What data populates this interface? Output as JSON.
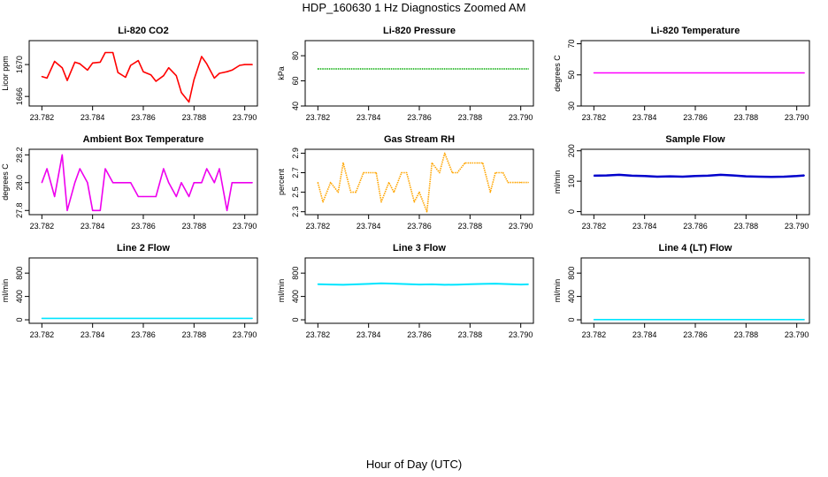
{
  "figure": {
    "title": "HDP_160630  1 Hz Diagnostics Zoomed AM",
    "xlabel": "Hour of Day (UTC)"
  },
  "chart_data": [
    {
      "type": "line",
      "title": "Li-820 CO2",
      "ylabel": "Licor ppm",
      "color": "#ff0000",
      "xlim": [
        23.7815,
        23.7905
      ],
      "ylim": [
        1664.8,
        1673.0
      ],
      "xticks": [
        "23.782",
        "23.784",
        "23.786",
        "23.788",
        "23.790"
      ],
      "yticks": [
        {
          "value": 1666,
          "label": "1666"
        },
        {
          "value": 1670,
          "label": "1670"
        }
      ],
      "x": [
        23.782,
        23.7822,
        23.7825,
        23.7828,
        23.783,
        23.7833,
        23.7835,
        23.7838,
        23.784,
        23.7843,
        23.7845,
        23.7848,
        23.785,
        23.7853,
        23.7855,
        23.7858,
        23.786,
        23.7863,
        23.7865,
        23.7868,
        23.787,
        23.7873,
        23.7875,
        23.7878,
        23.788,
        23.7883,
        23.7885,
        23.7888,
        23.789,
        23.7893,
        23.7895,
        23.7898,
        23.79,
        23.7903
      ],
      "values": [
        1668.5,
        1668.3,
        1670.4,
        1669.6,
        1668.0,
        1670.3,
        1670.1,
        1669.3,
        1670.2,
        1670.3,
        1671.5,
        1671.5,
        1669.0,
        1668.4,
        1669.9,
        1670.5,
        1669.1,
        1668.7,
        1667.9,
        1668.6,
        1669.6,
        1668.6,
        1666.5,
        1665.3,
        1668.1,
        1671.0,
        1670.1,
        1668.3,
        1668.9,
        1669.1,
        1669.3,
        1669.9,
        1670.0,
        1670.0
      ]
    },
    {
      "type": "line",
      "title": "Li-820 Pressure",
      "ylabel": "kPa",
      "color": "#00aa00",
      "line_style": "dotted",
      "xlim": [
        23.7815,
        23.7905
      ],
      "ylim": [
        40,
        92
      ],
      "xticks": [
        "23.782",
        "23.784",
        "23.786",
        "23.788",
        "23.790"
      ],
      "yticks": [
        {
          "value": 40,
          "label": "40"
        },
        {
          "value": 60,
          "label": "60"
        },
        {
          "value": 80,
          "label": "80"
        }
      ],
      "x": [
        23.782,
        23.7903
      ],
      "values": [
        69.5,
        69.5
      ]
    },
    {
      "type": "line",
      "title": "Li-820 Temperature",
      "ylabel": "degrees C",
      "color": "#ff00ff",
      "xlim": [
        23.7815,
        23.7905
      ],
      "ylim": [
        30,
        72
      ],
      "xticks": [
        "23.782",
        "23.784",
        "23.786",
        "23.788",
        "23.790"
      ],
      "yticks": [
        {
          "value": 30,
          "label": "30"
        },
        {
          "value": 50,
          "label": "50"
        },
        {
          "value": 70,
          "label": "70"
        }
      ],
      "x": [
        23.782,
        23.7903
      ],
      "values": [
        51.3,
        51.3
      ]
    },
    {
      "type": "line",
      "title": "Ambient Box Temperature",
      "ylabel": "degrees C",
      "color": "#ee00ee",
      "xlim": [
        23.7815,
        23.7905
      ],
      "ylim": [
        27.77,
        28.24
      ],
      "xticks": [
        "23.782",
        "23.784",
        "23.786",
        "23.788",
        "23.790"
      ],
      "yticks": [
        {
          "value": 27.8,
          "label": "27.8"
        },
        {
          "value": 28.0,
          "label": "28.0"
        },
        {
          "value": 28.2,
          "label": "28.2"
        }
      ],
      "x": [
        23.782,
        23.7822,
        23.7825,
        23.7828,
        23.783,
        23.7833,
        23.7835,
        23.7838,
        23.784,
        23.7843,
        23.7845,
        23.7848,
        23.785,
        23.7853,
        23.7855,
        23.7858,
        23.786,
        23.7863,
        23.7865,
        23.7868,
        23.787,
        23.7873,
        23.7875,
        23.7878,
        23.788,
        23.7883,
        23.7885,
        23.7888,
        23.789,
        23.7893,
        23.7895,
        23.7898,
        23.79,
        23.7903
      ],
      "values": [
        28.0,
        28.1,
        27.9,
        28.2,
        27.8,
        28.0,
        28.1,
        28.0,
        27.8,
        27.8,
        28.1,
        28.0,
        28.0,
        28.0,
        28.0,
        27.9,
        27.9,
        27.9,
        27.9,
        28.1,
        28.0,
        27.9,
        28.0,
        27.9,
        28.0,
        28.0,
        28.1,
        28.0,
        28.1,
        27.8,
        28.0,
        28.0,
        28.0,
        28.0
      ]
    },
    {
      "type": "line",
      "title": "Gas Stream RH",
      "ylabel": "percent",
      "color": "#ffa500",
      "line_style": "dotted",
      "xlim": [
        23.7815,
        23.7905
      ],
      "ylim": [
        2.27,
        2.94
      ],
      "xticks": [
        "23.782",
        "23.784",
        "23.786",
        "23.788",
        "23.790"
      ],
      "yticks": [
        {
          "value": 2.3,
          "label": "2.3"
        },
        {
          "value": 2.5,
          "label": "2.5"
        },
        {
          "value": 2.7,
          "label": "2.7"
        },
        {
          "value": 2.9,
          "label": "2.9"
        }
      ],
      "x": [
        23.782,
        23.7822,
        23.7825,
        23.7828,
        23.783,
        23.7833,
        23.7835,
        23.7838,
        23.784,
        23.7843,
        23.7845,
        23.7848,
        23.785,
        23.7853,
        23.7855,
        23.7858,
        23.786,
        23.7863,
        23.7865,
        23.7868,
        23.787,
        23.7873,
        23.7875,
        23.7878,
        23.788,
        23.7883,
        23.7885,
        23.7888,
        23.789,
        23.7893,
        23.7895,
        23.7898,
        23.79,
        23.7903
      ],
      "values": [
        2.6,
        2.4,
        2.6,
        2.5,
        2.8,
        2.5,
        2.5,
        2.7,
        2.7,
        2.7,
        2.4,
        2.6,
        2.5,
        2.7,
        2.7,
        2.4,
        2.5,
        2.3,
        2.8,
        2.7,
        2.9,
        2.7,
        2.7,
        2.8,
        2.8,
        2.8,
        2.8,
        2.5,
        2.7,
        2.7,
        2.6,
        2.6,
        2.6,
        2.6
      ]
    },
    {
      "type": "line",
      "title": "Sample Flow",
      "ylabel": "ml/min",
      "color": "#0000cc",
      "line_width": 2.5,
      "xlim": [
        23.7815,
        23.7905
      ],
      "ylim": [
        -10,
        205
      ],
      "xticks": [
        "23.782",
        "23.784",
        "23.786",
        "23.788",
        "23.790"
      ],
      "yticks": [
        {
          "value": 0,
          "label": "0"
        },
        {
          "value": 100,
          "label": "100"
        },
        {
          "value": 200,
          "label": "200"
        }
      ],
      "x": [
        23.782,
        23.7825,
        23.783,
        23.7835,
        23.784,
        23.7845,
        23.785,
        23.7855,
        23.786,
        23.7865,
        23.787,
        23.7875,
        23.788,
        23.7885,
        23.789,
        23.7895,
        23.79,
        23.7903
      ],
      "values": [
        118,
        119,
        121,
        118,
        117,
        115,
        116,
        115,
        117,
        118,
        121,
        119,
        116,
        115,
        114,
        115,
        117,
        119
      ]
    },
    {
      "type": "line",
      "title": "Line 2 Flow",
      "ylabel": "ml/min",
      "color": "#00e5ff",
      "xlim": [
        23.7815,
        23.7905
      ],
      "ylim": [
        -60,
        1060
      ],
      "xticks": [
        "23.782",
        "23.784",
        "23.786",
        "23.788",
        "23.790"
      ],
      "yticks": [
        {
          "value": 0,
          "label": "0"
        },
        {
          "value": 400,
          "label": "400"
        },
        {
          "value": 800,
          "label": "800"
        }
      ],
      "x": [
        23.782,
        23.7903
      ],
      "values": [
        25,
        25
      ]
    },
    {
      "type": "line",
      "title": "Line 3 Flow",
      "ylabel": "ml/min",
      "color": "#00e5ff",
      "line_width": 2,
      "xlim": [
        23.7815,
        23.7905
      ],
      "ylim": [
        -60,
        1060
      ],
      "xticks": [
        "23.782",
        "23.784",
        "23.786",
        "23.788",
        "23.790"
      ],
      "yticks": [
        {
          "value": 0,
          "label": "0"
        },
        {
          "value": 400,
          "label": "400"
        },
        {
          "value": 800,
          "label": "800"
        }
      ],
      "x": [
        23.782,
        23.7825,
        23.783,
        23.7835,
        23.784,
        23.7845,
        23.785,
        23.7855,
        23.786,
        23.7865,
        23.787,
        23.7875,
        23.788,
        23.7885,
        23.789,
        23.7895,
        23.79,
        23.7903
      ],
      "values": [
        610,
        605,
        600,
        608,
        615,
        625,
        620,
        612,
        605,
        608,
        600,
        603,
        610,
        615,
        620,
        612,
        605,
        608
      ]
    },
    {
      "type": "line",
      "title": "Line 4 (LT) Flow",
      "ylabel": "ml/min",
      "color": "#00e5ff",
      "xlim": [
        23.7815,
        23.7905
      ],
      "ylim": [
        -60,
        1060
      ],
      "xticks": [
        "23.782",
        "23.784",
        "23.786",
        "23.788",
        "23.790"
      ],
      "yticks": [
        {
          "value": 0,
          "label": "0"
        },
        {
          "value": 400,
          "label": "400"
        },
        {
          "value": 800,
          "label": "800"
        }
      ],
      "x": [
        23.782,
        23.7903
      ],
      "values": [
        3,
        3
      ]
    }
  ]
}
